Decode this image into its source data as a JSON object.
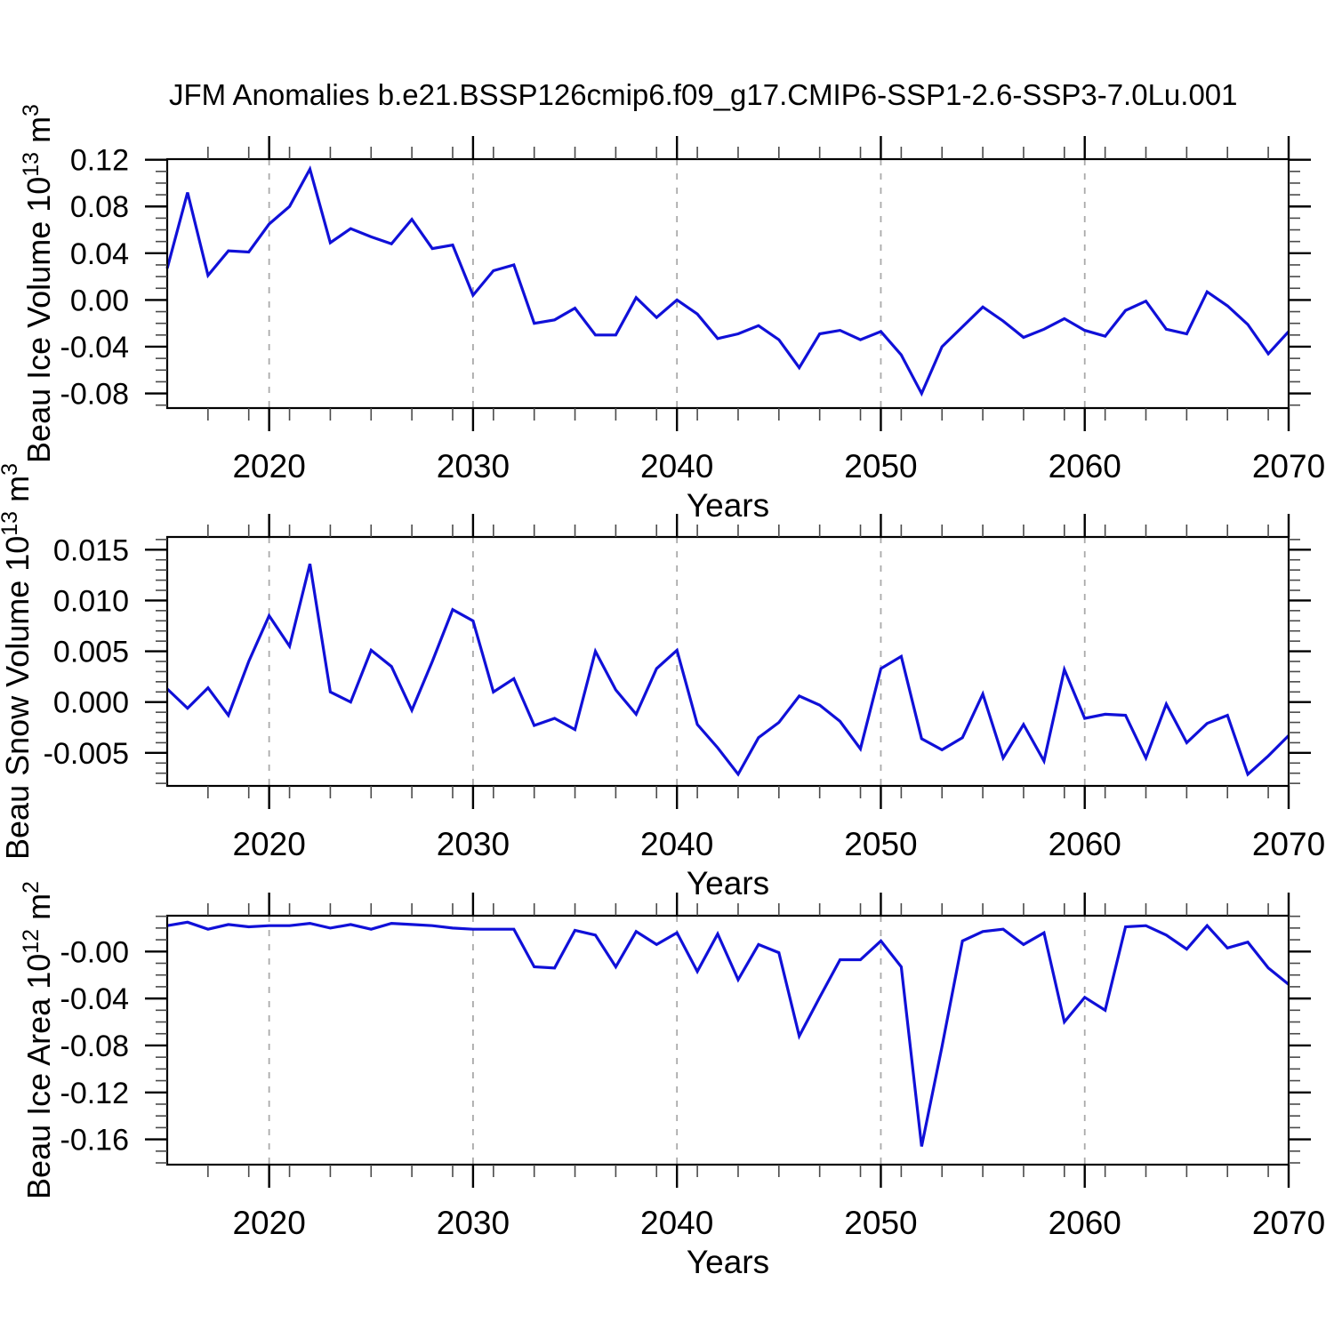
{
  "title": "JFM Anomalies b.e21.BSSP126cmip6.f09_g17.CMIP6-SSP1-2.6-SSP3-7.0Lu.001",
  "x_axis": {
    "label": "Years",
    "start_year": 2015,
    "end_year": 2070,
    "major_ticks": [
      2020,
      2030,
      2040,
      2050,
      2060,
      2070
    ],
    "minor_tick_step_years": 2,
    "gridline_years": [
      2020,
      2030,
      2040,
      2050,
      2060
    ]
  },
  "colors": {
    "line": "#1010d8",
    "grid": "#aaaaaa",
    "axis": "#000000",
    "minor_tick": "#4a4a4a",
    "background": "#ffffff"
  },
  "years": [
    2015,
    2016,
    2017,
    2018,
    2019,
    2020,
    2021,
    2022,
    2023,
    2024,
    2025,
    2026,
    2027,
    2028,
    2029,
    2030,
    2031,
    2032,
    2033,
    2034,
    2035,
    2036,
    2037,
    2038,
    2039,
    2040,
    2041,
    2042,
    2043,
    2044,
    2045,
    2046,
    2047,
    2048,
    2049,
    2050,
    2051,
    2052,
    2053,
    2054,
    2055,
    2056,
    2057,
    2058,
    2059,
    2060,
    2061,
    2062,
    2063,
    2064,
    2065,
    2066,
    2067,
    2068,
    2069,
    2070
  ],
  "chart_data": [
    {
      "type": "line",
      "name": "beau-ice-volume",
      "title": "",
      "xlabel": "Years",
      "ylabel": {
        "text": "Beau Ice Volume 10",
        "sup": "13",
        "text2": " m",
        "sup2": "3"
      },
      "ylim": [
        -0.0925,
        0.1205
      ],
      "yticks": {
        "values": [
          0.12,
          0.08,
          0.04,
          0.0,
          -0.04,
          -0.08
        ],
        "labels": [
          "0.12",
          "0.08",
          "0.04",
          "0.00",
          "-0.04",
          "-0.08"
        ]
      },
      "yminor_step": 0.01,
      "grid": "vertical-dashed",
      "legend": "none",
      "values": [
        0.027,
        0.092,
        0.021,
        0.042,
        0.041,
        0.065,
        0.08,
        0.112,
        0.049,
        0.061,
        0.054,
        0.048,
        0.069,
        0.044,
        0.047,
        0.004,
        0.025,
        0.03,
        -0.02,
        -0.017,
        -0.007,
        -0.03,
        -0.03,
        0.002,
        -0.015,
        0.0,
        -0.012,
        -0.033,
        -0.029,
        -0.022,
        -0.034,
        -0.058,
        -0.029,
        -0.026,
        -0.034,
        -0.027,
        -0.047,
        -0.08,
        -0.04,
        -0.023,
        -0.006,
        -0.018,
        -0.032,
        -0.025,
        -0.016,
        -0.026,
        -0.031,
        -0.009,
        -0.001,
        -0.025,
        -0.029,
        0.007,
        -0.005,
        -0.021,
        -0.046,
        -0.027
      ]
    },
    {
      "type": "line",
      "name": "beau-snow-volume",
      "title": "",
      "xlabel": "Years",
      "ylabel": {
        "text": "Beau Snow Volume 10",
        "sup": "13",
        "text2": " m",
        "sup2": "3"
      },
      "ylim": [
        -0.00825,
        0.01625
      ],
      "yticks": {
        "values": [
          0.015,
          0.01,
          0.005,
          0.0,
          -0.005
        ],
        "labels": [
          "0.015",
          "0.010",
          "0.005",
          "0.000",
          "-0.005"
        ]
      },
      "yminor_step": 0.001,
      "grid": "vertical-dashed",
      "legend": "none",
      "values": [
        0.0013,
        -0.0006,
        0.0014,
        -0.0013,
        0.004,
        0.0085,
        0.0055,
        0.0136,
        0.001,
        0.0,
        0.0051,
        0.0035,
        -0.0008,
        0.004,
        0.0091,
        0.008,
        0.001,
        0.0023,
        -0.0023,
        -0.0016,
        -0.0027,
        0.005,
        0.0012,
        -0.0012,
        0.0033,
        0.0051,
        -0.0022,
        -0.0045,
        -0.0071,
        -0.0035,
        -0.002,
        0.0006,
        -0.0003,
        -0.0019,
        -0.0046,
        0.0033,
        0.0045,
        -0.0036,
        -0.0047,
        -0.0035,
        0.0008,
        -0.0055,
        -0.0022,
        -0.0058,
        0.0032,
        -0.0016,
        -0.0012,
        -0.0013,
        -0.0055,
        -0.0002,
        -0.004,
        -0.0021,
        -0.0013,
        -0.0071,
        -0.0053,
        -0.0033
      ]
    },
    {
      "type": "line",
      "name": "beau-ice-area",
      "title": "",
      "xlabel": "Years",
      "ylabel": {
        "text": "Beau Ice Area 10",
        "sup": "12",
        "text2": " m",
        "sup2": "2"
      },
      "ylim": [
        -0.1815,
        0.0305
      ],
      "yticks": {
        "values": [
          0.0,
          -0.04,
          -0.08,
          -0.12,
          -0.16
        ],
        "labels": [
          "-0.00",
          "-0.04",
          "-0.08",
          "-0.12",
          "-0.16"
        ]
      },
      "yminor_step": 0.01,
      "grid": "vertical-dashed",
      "legend": "none",
      "values": [
        0.022,
        0.025,
        0.019,
        0.023,
        0.021,
        0.022,
        0.022,
        0.024,
        0.02,
        0.023,
        0.019,
        0.024,
        0.023,
        0.022,
        0.02,
        0.019,
        0.019,
        0.019,
        -0.013,
        -0.014,
        0.018,
        0.014,
        -0.013,
        0.017,
        0.006,
        0.016,
        -0.017,
        0.015,
        -0.024,
        0.006,
        -0.001,
        -0.072,
        -0.039,
        -0.007,
        -0.007,
        0.009,
        -0.013,
        -0.166,
        -0.081,
        0.009,
        0.017,
        0.019,
        0.006,
        0.016,
        -0.06,
        -0.039,
        -0.05,
        0.021,
        0.022,
        0.014,
        0.002,
        0.022,
        0.003,
        0.008,
        -0.014,
        -0.028
      ]
    }
  ]
}
